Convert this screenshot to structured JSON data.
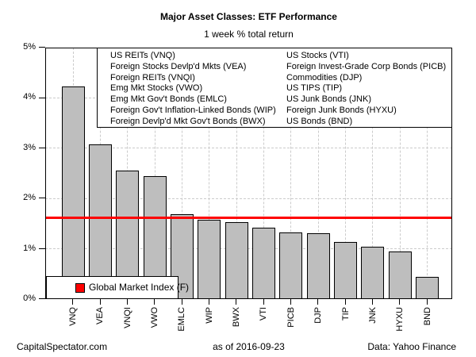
{
  "chart_data": {
    "type": "bar",
    "title": "Major Asset Classes: ETF Performance",
    "subtitle": "1 week % total return",
    "categories": [
      "VNQ",
      "VEA",
      "VNQI",
      "VWO",
      "EMLC",
      "WIP",
      "BWX",
      "VTI",
      "PICB",
      "DJP",
      "TIP",
      "JNK",
      "HYXU",
      "BND"
    ],
    "values": [
      4.22,
      3.08,
      2.56,
      2.45,
      1.69,
      1.58,
      1.53,
      1.42,
      1.33,
      1.31,
      1.13,
      1.04,
      0.95,
      0.44
    ],
    "xlabel": "",
    "ylabel": "",
    "ylim": [
      0,
      5
    ],
    "ytick_labels": [
      "0%",
      "1%",
      "2%",
      "3%",
      "4%",
      "5%"
    ],
    "grid": "dashed-gray-horizontal-and-vertical",
    "legend_position": "top-right-box-two-columns",
    "legend_columns": [
      [
        "US REITs (VNQ)",
        "Foreign Stocks Devlp'd Mkts (VEA)",
        "Foreign REITs (VNQI)",
        "Emg Mkt Stocks (VWO)",
        "Emg Mkt Gov't Bonds (EMLC)",
        "Foreign Gov't Inflation-Linked Bonds (WIP)",
        "Foreign Devlp'd Mkt Gov't Bonds (BWX)"
      ],
      [
        "US Stocks (VTI)",
        "Foreign Invest-Grade Corp Bonds (PICB)",
        "Commodities (DJP)",
        "US TIPS (TIP)",
        "US Junk Bonds (JNK)",
        "Foreign Junk Bonds (HYXU)",
        "US Bonds (BND)"
      ]
    ],
    "reference_line": {
      "label": "Global Market Index (F)",
      "value": 1.62,
      "color": "#ff0000"
    }
  },
  "footer": {
    "left": "CapitalSpectator.com",
    "center": "as of  2016-09-23",
    "right": "Data: Yahoo Finance"
  },
  "colors": {
    "bar_fill": "#bebebe",
    "bar_border": "#000000",
    "grid": "#cbcbcb",
    "reference": "#ff0000",
    "background": "#ffffff",
    "text": "#000000"
  }
}
